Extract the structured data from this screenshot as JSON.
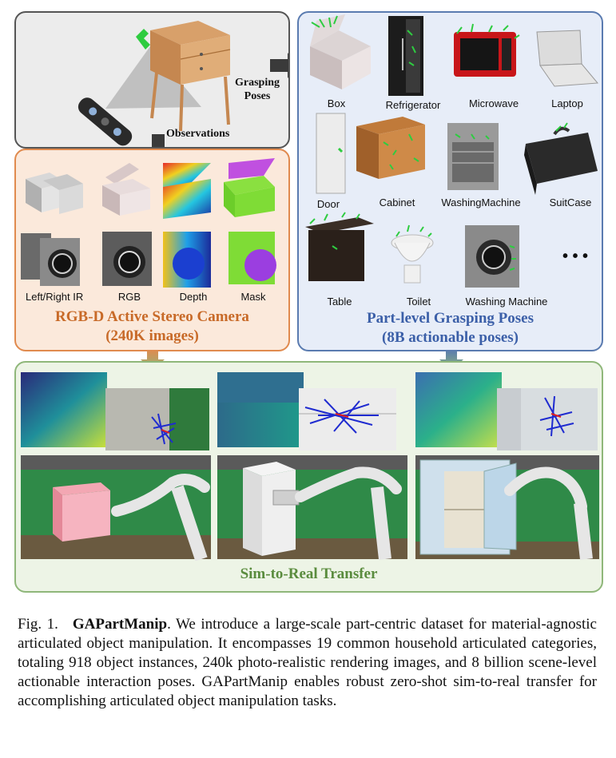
{
  "scene": {
    "grasping_poses_label": "Grasping Poses",
    "observations_label": "Observations"
  },
  "camera": {
    "labels": [
      "Left/Right IR",
      "RGB",
      "Depth",
      "Mask"
    ],
    "title_line1": "RGB-D Active Stereo Camera",
    "title_line2": "(240K images)"
  },
  "poses": {
    "categories": [
      "Box",
      "Refrigerator",
      "Microwave",
      "Laptop",
      "Door",
      "Cabinet",
      "WashingMachine",
      "SuitCase",
      "Table",
      "Toilet",
      "Washing Machine"
    ],
    "ellipsis": "• • •",
    "title_line1": "Part-level Grasping Poses",
    "title_line2": "(8B actionable poses)"
  },
  "sim": {
    "title": "Sim-to-Real Transfer"
  },
  "caption": {
    "figno": "Fig. 1.",
    "name": "GAPartManip",
    "text": ". We introduce a large-scale part-centric dataset for material-agnostic articulated object manipulation. It encompasses 19 common household articulated categories, totaling 918 object instances, 240k photo-realistic rendering images, and 8 billion scene-level actionable interaction poses. GAPartManip enables robust zero-shot sim-to-real transfer for accomplishing articulated object manipulation tasks."
  },
  "colors": {
    "orange": "#c86a28",
    "blue": "#3b5fa8",
    "green": "#5a8c3e"
  }
}
